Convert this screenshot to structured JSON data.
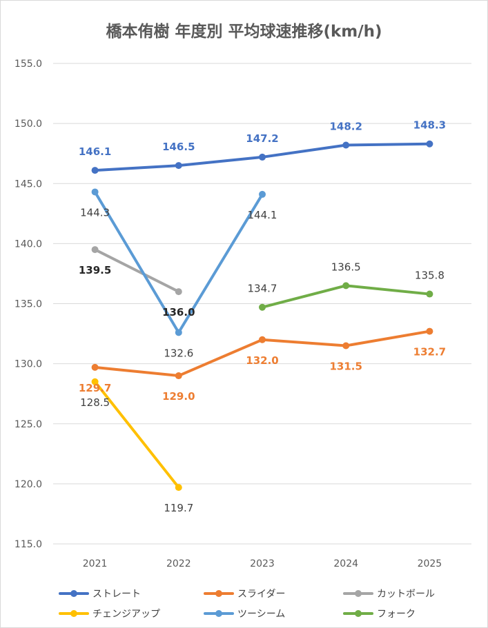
{
  "chart_data": {
    "type": "line",
    "title": "橋本侑樹 年度別 平均球速推移(km/h)",
    "categories": [
      "2021",
      "2022",
      "2023",
      "2024",
      "2025"
    ],
    "ylim": [
      115.0,
      155.0
    ],
    "ytick_labels": [
      "155.0",
      "150.0",
      "145.0",
      "140.0",
      "135.0",
      "130.0",
      "125.0",
      "120.0",
      "115.0"
    ],
    "grid": true,
    "legend_position": "bottom",
    "series": [
      {
        "name": "ストレート",
        "color": "#4472c4",
        "label_color": "#4472c4",
        "label_bold": true,
        "label_side": "above",
        "values": [
          146.1,
          146.5,
          147.2,
          148.2,
          148.3
        ],
        "labels": [
          "146.1",
          "146.5",
          "147.2",
          "148.2",
          "148.3"
        ]
      },
      {
        "name": "スライダー",
        "color": "#ed7d31",
        "label_color": "#ed7d31",
        "label_bold": true,
        "label_side": "below",
        "values": [
          129.7,
          129.0,
          132.0,
          131.5,
          132.7
        ],
        "labels": [
          "129.7",
          "129.0",
          "132.0",
          "131.5",
          "132.7"
        ]
      },
      {
        "name": "カットボール",
        "color": "#a5a5a5",
        "label_color": "#262626",
        "label_bold": true,
        "label_side": "below",
        "values": [
          139.5,
          136.0,
          null,
          null,
          null
        ],
        "labels": [
          "139.5",
          "136.0",
          null,
          null,
          null
        ]
      },
      {
        "name": "チェンジアップ",
        "color": "#ffc000",
        "label_color": "#404040",
        "label_bold": false,
        "label_side": "below",
        "values": [
          128.5,
          119.7,
          null,
          null,
          null
        ],
        "labels": [
          "128.5",
          "119.7",
          null,
          null,
          null
        ]
      },
      {
        "name": "ツーシーム",
        "color": "#5b9bd5",
        "label_color": "#404040",
        "label_bold": false,
        "label_side": "below",
        "values": [
          144.3,
          132.6,
          144.1,
          null,
          null
        ],
        "labels": [
          "144.3",
          "132.6",
          "144.1",
          null,
          null
        ]
      },
      {
        "name": "フォーク",
        "color": "#70ad47",
        "label_color": "#404040",
        "label_bold": false,
        "label_side": "above",
        "values": [
          null,
          null,
          134.7,
          136.5,
          135.8
        ],
        "labels": [
          null,
          null,
          "134.7",
          "136.5",
          "135.8"
        ]
      }
    ]
  }
}
